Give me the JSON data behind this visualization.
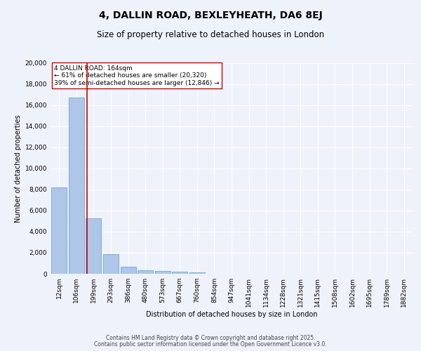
{
  "title": "4, DALLIN ROAD, BEXLEYHEATH, DA6 8EJ",
  "subtitle": "Size of property relative to detached houses in London",
  "xlabel": "Distribution of detached houses by size in London",
  "ylabel": "Number of detached properties",
  "categories": [
    "12sqm",
    "106sqm",
    "199sqm",
    "293sqm",
    "386sqm",
    "480sqm",
    "573sqm",
    "667sqm",
    "760sqm",
    "854sqm",
    "947sqm",
    "1041sqm",
    "1134sqm",
    "1228sqm",
    "1321sqm",
    "1415sqm",
    "1508sqm",
    "1602sqm",
    "1695sqm",
    "1789sqm",
    "1882sqm"
  ],
  "values": [
    8200,
    16700,
    5300,
    1850,
    650,
    350,
    270,
    200,
    120,
    0,
    0,
    0,
    0,
    0,
    0,
    0,
    0,
    0,
    0,
    0,
    0
  ],
  "bar_color": "#aec6e8",
  "bar_edge_color": "#5a9bd5",
  "vline_x": 1.61,
  "vline_color": "#cc0000",
  "annotation_text": "4 DALLIN ROAD: 164sqm\n← 61% of detached houses are smaller (20,320)\n39% of semi-detached houses are larger (12,846) →",
  "annotation_box_color": "#ffffff",
  "annotation_box_edge": "#cc0000",
  "ylim": [
    0,
    20000
  ],
  "yticks": [
    0,
    2000,
    4000,
    6000,
    8000,
    10000,
    12000,
    14000,
    16000,
    18000,
    20000
  ],
  "background_color": "#eef2fb",
  "grid_color": "#ffffff",
  "footer_line1": "Contains HM Land Registry data © Crown copyright and database right 2025.",
  "footer_line2": "Contains public sector information licensed under the Open Government Licence v3.0.",
  "title_fontsize": 10,
  "subtitle_fontsize": 8.5,
  "axis_label_fontsize": 7,
  "tick_fontsize": 6.5,
  "annotation_fontsize": 6.5,
  "footer_fontsize": 5.5
}
